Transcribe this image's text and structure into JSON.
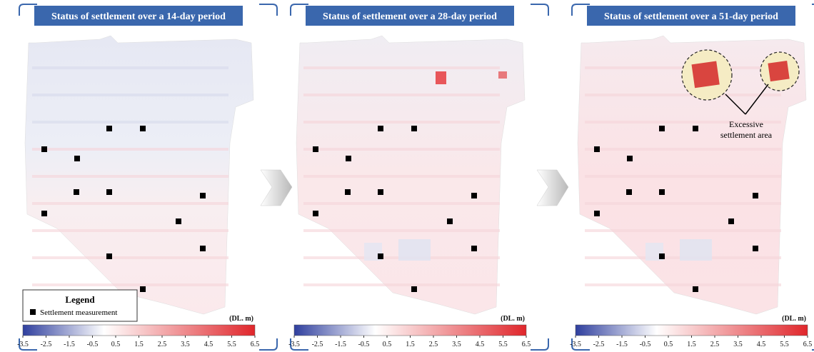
{
  "panels": [
    {
      "title": "Status of settlement over a 14-day period"
    },
    {
      "title": "Status of settlement over a 28-day period"
    },
    {
      "title": "Status of settlement over a 51-day period"
    }
  ],
  "colorbar": {
    "unit": "(DL. m)",
    "ticks": [
      -3.5,
      -2.5,
      -1.5,
      -0.5,
      0.5,
      1.5,
      2.5,
      3.5,
      4.5,
      5.5,
      6.5
    ],
    "colors": [
      "#2f3f9e",
      "#ffffff",
      "#e0262b"
    ]
  },
  "legend": {
    "title": "Legend",
    "item": "Settlement measurement"
  },
  "annotation": [
    "Excessive",
    "settlement area"
  ]
}
